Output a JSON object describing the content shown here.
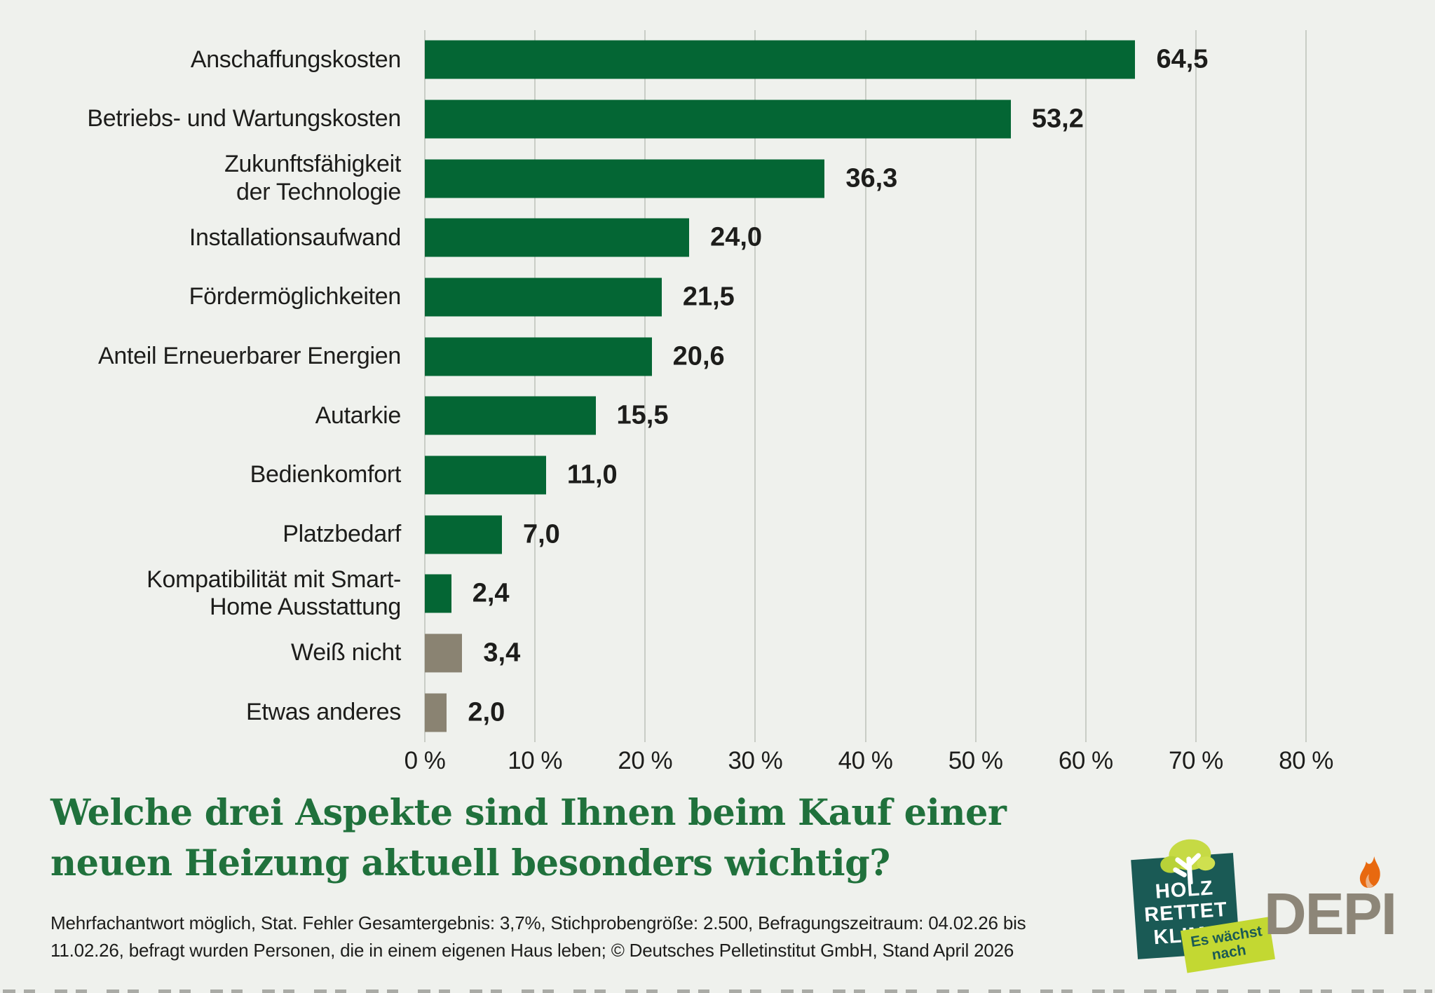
{
  "background_color": "#eff1ed",
  "chart_data": {
    "type": "bar",
    "orientation": "horizontal",
    "categories": [
      "Anschaffungskosten",
      "Betriebs- und Wartungskosten",
      "Zukunftsfähigkeit\nder Technologie",
      "Installationsaufwand",
      "Fördermöglichkeiten",
      "Anteil Erneuerbarer Energien",
      "Autarkie",
      "Bedienkomfort",
      "Platzbedarf",
      "Kompatibilität mit Smart-\nHome Ausstattung",
      "Weiß nicht",
      "Etwas anderes"
    ],
    "values": [
      64.5,
      53.2,
      36.3,
      24.0,
      21.5,
      20.6,
      15.5,
      11.0,
      7.0,
      2.4,
      3.4,
      2.0
    ],
    "value_labels": [
      "64,5",
      "53,2",
      "36,3",
      "24,0",
      "21,5",
      "20,6",
      "15,5",
      "11,0",
      "7,0",
      "2,4",
      "3,4",
      "2,0"
    ],
    "x_ticks": [
      "0 %",
      "10 %",
      "20 %",
      "30 %",
      "40 %",
      "50 %",
      "60 %",
      "70 %",
      "80 %"
    ],
    "xlim": [
      0,
      80
    ],
    "grid": true,
    "legend_position": "none",
    "bar_color_default": "#046634",
    "bar_color_muted": "#8a8372",
    "muted_indices": [
      10,
      11
    ]
  },
  "title": {
    "line1": "Welche drei Aspekte sind Ihnen beim Kauf einer",
    "line2": "neuen Heizung aktuell besonders wichtig?",
    "color": "#20713c"
  },
  "footnote": {
    "line1": "Mehrfachantwort möglich, Stat. Fehler Gesamtergebnis: 3,7%, Stichprobengröße: 2.500, Befragungszeitraum: 04.02.26 bis",
    "line2": "11.02.26, befragt wurden Personen, die in einem eigenen Haus leben; © Deutsches Pelletinstitut GmbH, Stand April 2026"
  },
  "logos": {
    "holz_badge": {
      "line1": "HOLZ",
      "line2": "RETTET",
      "line3": "KLIMA",
      "tag_line1": "Es wächst",
      "tag_line2": "nach",
      "badge_color": "#1a5a55",
      "tag_color": "#c3d832",
      "tree_color": "#c6da44"
    },
    "depi": {
      "text": "DEPI",
      "text_color": "#8d8678",
      "flame_color": "#e8690f"
    }
  }
}
